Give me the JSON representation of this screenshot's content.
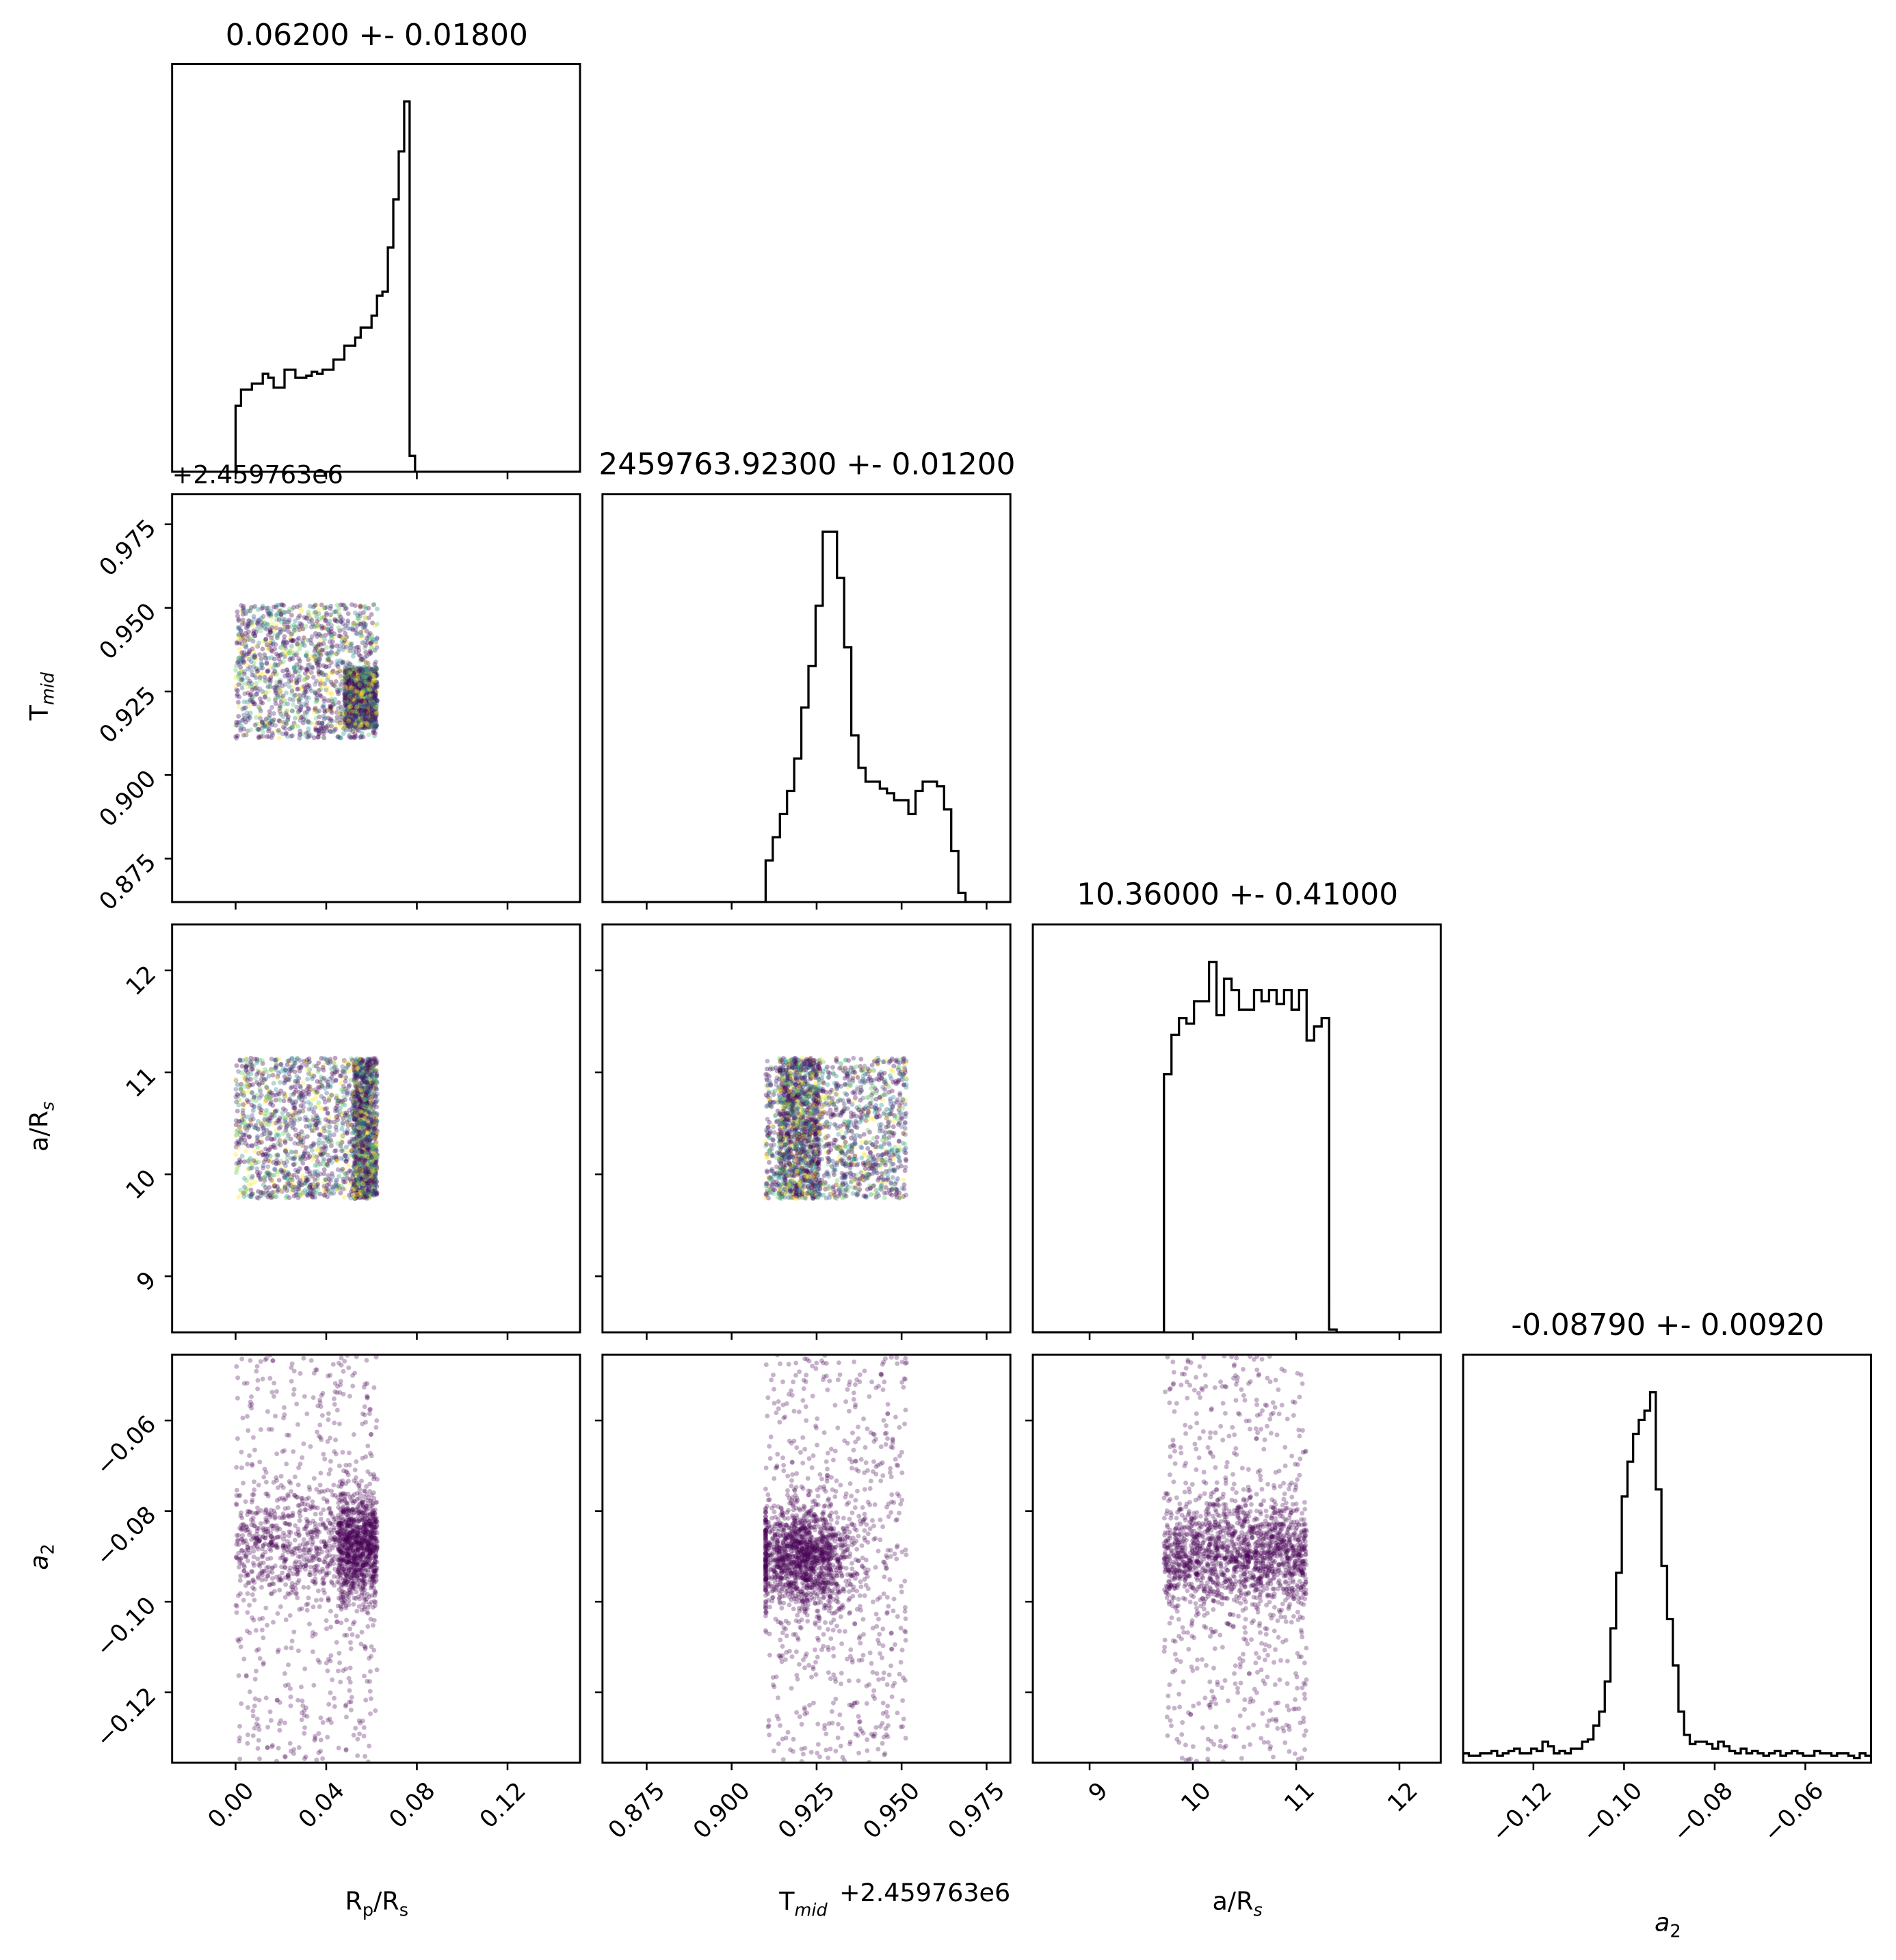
{
  "figure": {
    "type": "corner_plot",
    "parameters": [
      "R_p/R_s",
      "T_mid",
      "a/R_s",
      "a_2"
    ],
    "labels": {
      "rp": {
        "main": "R",
        "sub": "p",
        "rest": "/R",
        "sub2": "s"
      },
      "tmid": {
        "main": "T",
        "sub": "mid"
      },
      "ars": {
        "main": "a/R",
        "sub": "s"
      },
      "a2": {
        "main": "a",
        "sub": "2"
      }
    },
    "offset_text": "+2.459763e6",
    "scatter_color": "#440154",
    "line_color": "#000000"
  },
  "chart_data": [
    {
      "type": "histogram",
      "parameter": "R_p/R_s",
      "title": "0.06200 +- 0.01800",
      "xlim": [
        -0.028,
        0.152
      ],
      "xticks": [
        "0.00",
        "0.04",
        "0.08",
        "0.12"
      ],
      "bins": {
        "edges_start": 0.0,
        "bin_width": 0.0024,
        "counts": [
          33,
          41,
          41,
          44,
          44,
          49,
          47,
          42,
          42,
          51,
          51,
          47,
          47,
          48,
          50,
          49,
          51,
          51,
          56,
          56,
          63,
          63,
          67,
          72,
          72,
          78,
          88,
          90,
          112,
          136,
          160,
          185,
          8,
          0
        ]
      }
    },
    {
      "type": "histogram",
      "parameter": "T_mid",
      "title": "2459763.92300 +- 0.01200",
      "offset": "+2.459763e6",
      "xlim": [
        0.862,
        0.982
      ],
      "xticks": [
        "0.875",
        "0.900",
        "0.925",
        "0.950",
        "0.975"
      ],
      "bins": {
        "edges_start": 0.91,
        "bin_width": 0.0021,
        "counts": [
          18,
          28,
          38,
          48,
          62,
          84,
          102,
          128,
          160,
          160,
          140,
          110,
          72,
          58,
          52,
          52,
          49,
          47,
          44,
          44,
          38,
          48,
          52,
          52,
          50,
          40,
          22,
          4,
          0
        ]
      }
    },
    {
      "type": "histogram",
      "parameter": "a/R_s",
      "title": "10.36000 +- 0.41000",
      "xlim": [
        8.45,
        12.4
      ],
      "xticks": [
        "9",
        "10",
        "11",
        "12"
      ],
      "bins": {
        "edges_start": 9.72,
        "bin_width": 0.0727,
        "counts": [
          92,
          106,
          112,
          110,
          118,
          118,
          132,
          113,
          126,
          122,
          115,
          115,
          122,
          118,
          122,
          117,
          122,
          115,
          122,
          104,
          109,
          112,
          1,
          0
        ]
      }
    },
    {
      "type": "histogram",
      "parameter": "a_2",
      "title": "-0.08790 +- 0.00920",
      "xlim": [
        -0.1355,
        -0.0455
      ],
      "xticks": [
        "−0.12",
        "−0.10",
        "−0.08",
        "−0.06"
      ],
      "bins": {
        "edges_start": -0.1355,
        "bin_width": 0.00125,
        "counts": [
          4,
          3,
          3,
          4,
          4,
          5,
          3,
          4,
          5,
          6,
          4,
          4,
          6,
          5,
          9,
          7,
          4,
          5,
          4,
          6,
          6,
          9,
          10,
          16,
          22,
          35,
          58,
          82,
          115,
          130,
          142,
          148,
          152,
          160,
          118,
          85,
          62,
          42,
          22,
          12,
          8,
          9,
          9,
          8,
          6,
          9,
          7,
          5,
          4,
          6,
          4,
          5,
          4,
          3,
          4,
          5,
          3,
          4,
          5,
          4,
          3,
          3,
          5,
          4,
          4,
          3,
          4,
          4,
          3,
          2,
          4,
          3
        ]
      }
    },
    {
      "type": "scatter",
      "x_parameter": "R_p/R_s",
      "y_parameter": "T_mid",
      "xlim": [
        -0.028,
        0.152
      ],
      "ylim": [
        0.862,
        0.984
      ],
      "yticks": [
        "0.875",
        "0.900",
        "0.925",
        "0.950",
        "0.975"
      ],
      "samples": {
        "x_range": [
          0.0,
          0.0625
        ],
        "y_range": [
          0.911,
          0.951
        ],
        "dense_x": [
          0.048,
          0.0625
        ],
        "dense_y": [
          0.914,
          0.932
        ]
      }
    },
    {
      "type": "scatter",
      "x_parameter": "R_p/R_s",
      "y_parameter": "a/R_s",
      "xlim": [
        -0.028,
        0.152
      ],
      "ylim": [
        8.45,
        12.45
      ],
      "yticks": [
        "9",
        "10",
        "11",
        "12"
      ],
      "samples": {
        "x_range": [
          0.0,
          0.0625
        ],
        "y_range": [
          9.76,
          11.14
        ],
        "dense_x": [
          0.052,
          0.0625
        ],
        "dense_y": [
          9.76,
          11.14
        ]
      }
    },
    {
      "type": "scatter",
      "x_parameter": "T_mid",
      "y_parameter": "a/R_s",
      "xlim": [
        0.862,
        0.982
      ],
      "ylim": [
        8.45,
        12.45
      ],
      "samples": {
        "x_range": [
          0.91,
          0.9515
        ],
        "y_range": [
          9.76,
          11.14
        ],
        "dense_x": [
          0.914,
          0.926
        ],
        "dense_y": [
          9.76,
          11.14
        ]
      }
    },
    {
      "type": "scatter",
      "x_parameter": "R_p/R_s",
      "y_parameter": "a_2",
      "xlim": [
        -0.028,
        0.152
      ],
      "ylim": [
        -0.1355,
        -0.0455
      ],
      "yticks": [
        "−0.12",
        "−0.10",
        "−0.08",
        "−0.06"
      ],
      "samples": {
        "x_range": [
          0.0,
          0.0625
        ],
        "y_range": [
          -0.1355,
          -0.0455
        ],
        "core_y": [
          -0.0879,
          0.006
        ],
        "dense_x": [
          0.045,
          0.0625
        ]
      }
    },
    {
      "type": "scatter",
      "x_parameter": "T_mid",
      "y_parameter": "a_2",
      "xlim": [
        0.862,
        0.982
      ],
      "ylim": [
        -0.1355,
        -0.0455
      ],
      "samples": {
        "x_range": [
          0.91,
          0.9515
        ],
        "y_range": [
          -0.1355,
          -0.0455
        ],
        "core_x": [
          0.921,
          0.008
        ],
        "core_y": [
          -0.0905,
          0.006
        ]
      }
    },
    {
      "type": "scatter",
      "x_parameter": "a/R_s",
      "y_parameter": "a_2",
      "xlim": [
        8.45,
        12.4
      ],
      "ylim": [
        -0.1355,
        -0.0455
      ],
      "samples": {
        "x_range": [
          9.72,
          11.1
        ],
        "y_range": [
          -0.1355,
          -0.0455
        ],
        "core_y": [
          -0.0895,
          0.006
        ]
      }
    }
  ]
}
